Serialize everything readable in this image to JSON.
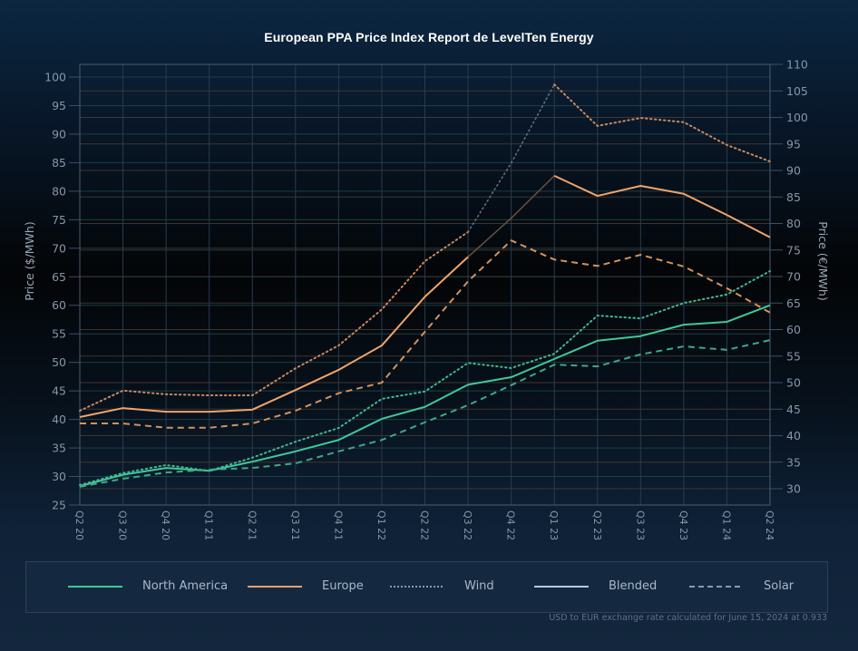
{
  "chart_data": {
    "type": "line",
    "title": "European PPA Price Index Report de LevelTen Energy",
    "xlabel": "",
    "ylabel_left": "Price ($/MWh)",
    "ylabel_right": "Price (€/MWh)",
    "ylim_left": [
      25,
      100
    ],
    "yticks_left": [
      25,
      30,
      35,
      40,
      45,
      50,
      55,
      60,
      65,
      70,
      75,
      80,
      85,
      90,
      95,
      100
    ],
    "ylim_right": [
      30,
      110
    ],
    "yticks_right": [
      30,
      35,
      40,
      45,
      50,
      55,
      60,
      65,
      70,
      75,
      80,
      85,
      90,
      95,
      100,
      105,
      110
    ],
    "grid": true,
    "legend_position": "bottom",
    "categories": [
      "Q2 20",
      "Q3 20",
      "Q4 20",
      "Q1 21",
      "Q2 21",
      "Q3 21",
      "Q4 21",
      "Q1 22",
      "Q2 22",
      "Q3 22",
      "Q4 22",
      "Q1 23",
      "Q2 23",
      "Q3 23",
      "Q4 23",
      "Q1 24",
      "Q2 24"
    ],
    "series": [
      {
        "name": "North America",
        "region": "North America",
        "technology": "Blended",
        "axis": "left",
        "style": "solid",
        "color": "#3fc99a",
        "values": [
          28.3,
          30.3,
          31.5,
          31.0,
          32.6,
          34.4,
          36.4,
          40.1,
          42.2,
          46.1,
          47.4,
          50.6,
          53.8,
          54.6,
          56.6,
          57.1,
          60.0
        ]
      },
      {
        "name": "North America Wind",
        "region": "North America",
        "technology": "Wind",
        "axis": "left",
        "style": "dotted",
        "color": "#3fb890",
        "values": [
          28.5,
          30.6,
          32.0,
          31.0,
          33.3,
          36.1,
          38.5,
          43.6,
          44.9,
          49.9,
          49.0,
          51.5,
          58.2,
          57.7,
          60.4,
          61.9,
          66.0
        ]
      },
      {
        "name": "North America Solar",
        "region": "North America",
        "technology": "Solar",
        "axis": "left",
        "style": "dashed",
        "color": "#3fa888",
        "values": [
          28.2,
          29.6,
          30.7,
          31.2,
          31.5,
          32.3,
          34.4,
          36.4,
          39.5,
          42.5,
          46.0,
          49.6,
          49.3,
          51.4,
          52.8,
          52.2,
          53.9
        ]
      },
      {
        "name": "Europe",
        "region": "Europe",
        "technology": "Blended",
        "axis": "right",
        "style": "solid",
        "color": "#f0a46a",
        "values": [
          43.5,
          45.2,
          44.5,
          44.5,
          44.9,
          48.6,
          52.4,
          57.0,
          66.2,
          73.7,
          81.0,
          89.0,
          85.2,
          87.1,
          85.6,
          81.6,
          77.4
        ]
      },
      {
        "name": "Europe Wind",
        "region": "Europe",
        "technology": "Wind",
        "axis": "right",
        "style": "dotted",
        "color": "#c98a5e",
        "values": [
          44.7,
          48.5,
          47.8,
          47.6,
          47.6,
          52.7,
          57.0,
          63.8,
          72.9,
          78.4,
          91.4,
          106.2,
          98.4,
          99.9,
          99.1,
          94.8,
          91.7
        ]
      },
      {
        "name": "Europe Solar",
        "region": "Europe",
        "technology": "Solar",
        "axis": "right",
        "style": "dashed",
        "color": "#d4925e",
        "values": [
          42.3,
          42.3,
          41.5,
          41.5,
          42.3,
          44.7,
          48.0,
          50.0,
          59.6,
          69.1,
          76.8,
          73.2,
          72.0,
          74.1,
          71.9,
          67.8,
          63.2
        ]
      }
    ],
    "dimmed_segments": {
      "Europe": [
        "Q3 22",
        "Q1 23"
      ],
      "Europe Wind": [
        "Q3 22",
        "Q1 23"
      ]
    },
    "colors": {
      "north_america": "#3fc99a",
      "europe": "#f0a46a",
      "muted": "#8a9ab0",
      "blended": "#b8c8dc"
    }
  },
  "legend": {
    "items": [
      {
        "label": "North America",
        "swatch": "solid",
        "color": "#3fc99a"
      },
      {
        "label": "Europe",
        "swatch": "solid",
        "color": "#e8a070"
      },
      {
        "label": "Wind",
        "swatch": "dotted",
        "color": "#8a9ab0"
      },
      {
        "label": "Blended",
        "swatch": "solid",
        "color": "#b8c8dc"
      },
      {
        "label": "Solar",
        "swatch": "dashed",
        "color": "#8a9ab0"
      }
    ]
  },
  "footnote": "USD to EUR exchange rate calculated for June 15, 2024 at 0.933"
}
